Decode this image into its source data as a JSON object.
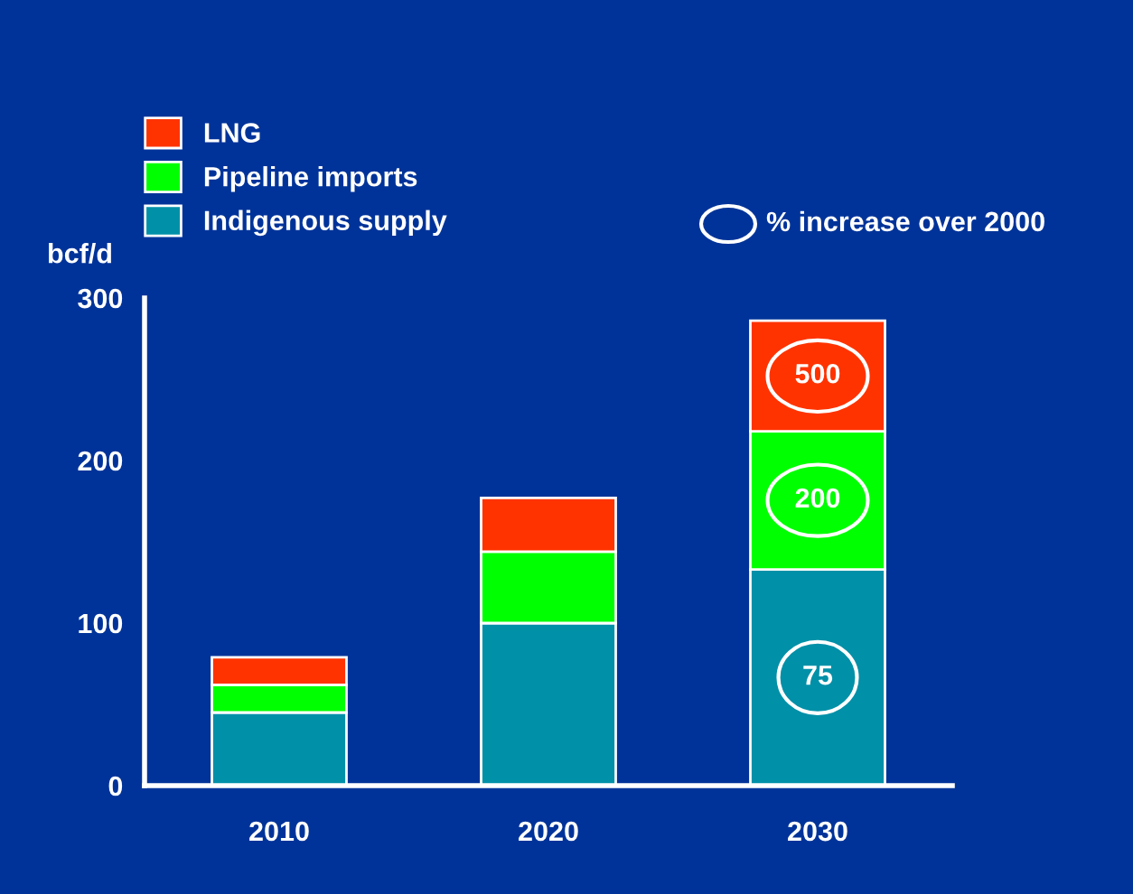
{
  "chart_data": {
    "type": "bar",
    "stacked": true,
    "ylabel": "bcf/d",
    "categories": [
      "2010",
      "2020",
      "2030"
    ],
    "series": [
      {
        "name": "Indigenous supply",
        "color": "#0090a8",
        "values": [
          45,
          100,
          133
        ]
      },
      {
        "name": "Pipeline imports",
        "color": "#00ff00",
        "values": [
          17,
          44,
          85
        ]
      },
      {
        "name": "LNG",
        "color": "#ff3300",
        "values": [
          17,
          33,
          68
        ]
      }
    ],
    "ylim": [
      0,
      300
    ],
    "yticks": [
      0,
      100,
      200,
      300
    ],
    "grid": false,
    "legend": "top left",
    "annotations": [
      "500",
      "200",
      "75",
      "% increase over 2000"
    ]
  }
}
